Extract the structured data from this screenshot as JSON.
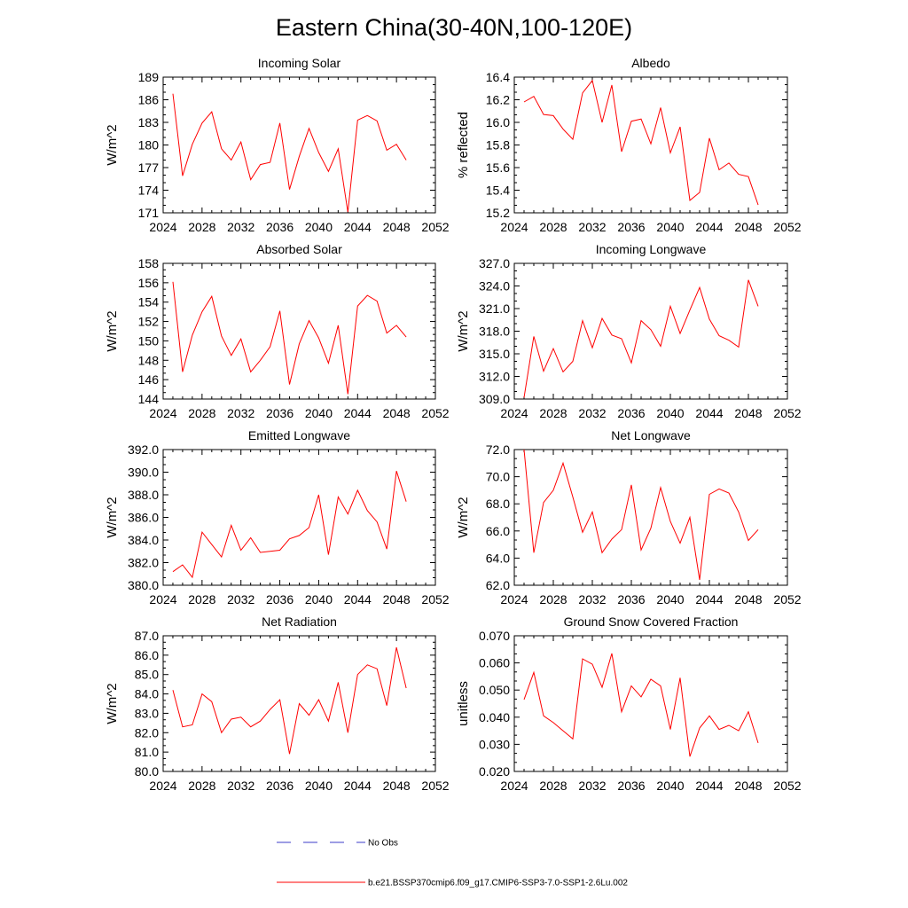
{
  "title": "Eastern China(30-40N,100-120E)",
  "legend": {
    "entries": [
      {
        "label": "No Obs",
        "color": "#3b3bc8",
        "style": "dashed"
      },
      {
        "label": "b.e21.BSSP370cmip6.f09_g17.CMIP6-SSP3-7.0-SSP1-2.6Lu.002",
        "color": "#ff0000",
        "style": "solid"
      }
    ]
  },
  "chart_data": [
    {
      "type": "line",
      "title": "Incoming Solar",
      "xlabel": "",
      "ylabel": "W/m^2",
      "xlim": [
        2024,
        2052
      ],
      "ylim": [
        171,
        189
      ],
      "xticks": [
        2024,
        2028,
        2032,
        2036,
        2040,
        2044,
        2048,
        2052
      ],
      "xtick_labels": [
        "2024",
        "2028",
        "2032",
        "2036",
        "2040",
        "2044",
        "2048",
        "2052"
      ],
      "yticks": [
        171,
        174,
        177,
        180,
        183,
        186,
        189
      ],
      "ytick_labels": [
        "171",
        "174",
        "177",
        "180",
        "183",
        "186",
        "189"
      ],
      "grid": false,
      "x": [
        2025,
        2026,
        2027,
        2028,
        2029,
        2030,
        2031,
        2032,
        2033,
        2034,
        2035,
        2036,
        2037,
        2038,
        2039,
        2040,
        2041,
        2042,
        2043,
        2044,
        2045,
        2046,
        2047,
        2048,
        2049
      ],
      "series": [
        {
          "name": "b.e21.BSSP370cmip6.f09_g17.CMIP6-SSP3-7.0-SSP1-2.6Lu.002",
          "color": "#ff0000",
          "values": [
            186.8,
            175.9,
            180.1,
            182.9,
            184.4,
            179.5,
            178.0,
            180.4,
            175.4,
            177.4,
            177.7,
            182.9,
            174.1,
            178.5,
            182.2,
            179.0,
            176.5,
            179.5,
            171.1,
            183.3,
            183.9,
            183.2,
            179.3,
            180.1,
            178.0
          ]
        }
      ]
    },
    {
      "type": "line",
      "title": "Albedo",
      "xlabel": "",
      "ylabel": "% reflected",
      "xlim": [
        2024,
        2052
      ],
      "ylim": [
        15.2,
        16.4
      ],
      "xticks": [
        2024,
        2028,
        2032,
        2036,
        2040,
        2044,
        2048,
        2052
      ],
      "xtick_labels": [
        "2024",
        "2028",
        "2032",
        "2036",
        "2040",
        "2044",
        "2048",
        "2052"
      ],
      "yticks": [
        15.2,
        15.4,
        15.6,
        15.8,
        16.0,
        16.2,
        16.4
      ],
      "ytick_labels": [
        "15.2",
        "15.4",
        "15.6",
        "15.8",
        "16.0",
        "16.2",
        "16.4"
      ],
      "grid": false,
      "x": [
        2025,
        2026,
        2027,
        2028,
        2029,
        2030,
        2031,
        2032,
        2033,
        2034,
        2035,
        2036,
        2037,
        2038,
        2039,
        2040,
        2041,
        2042,
        2043,
        2044,
        2045,
        2046,
        2047,
        2048,
        2049
      ],
      "series": [
        {
          "name": "b.e21.BSSP370cmip6.f09_g17.CMIP6-SSP3-7.0-SSP1-2.6Lu.002",
          "color": "#ff0000",
          "values": [
            16.18,
            16.23,
            16.07,
            16.06,
            15.94,
            15.85,
            16.26,
            16.37,
            16.0,
            16.33,
            15.74,
            16.01,
            16.03,
            15.81,
            16.13,
            15.73,
            15.96,
            15.31,
            15.38,
            15.86,
            15.58,
            15.64,
            15.54,
            15.52,
            15.27
          ]
        }
      ]
    },
    {
      "type": "line",
      "title": "Absorbed Solar",
      "xlabel": "",
      "ylabel": "W/m^2",
      "xlim": [
        2024,
        2052
      ],
      "ylim": [
        144,
        158
      ],
      "xticks": [
        2024,
        2028,
        2032,
        2036,
        2040,
        2044,
        2048,
        2052
      ],
      "xtick_labels": [
        "2024",
        "2028",
        "2032",
        "2036",
        "2040",
        "2044",
        "2048",
        "2052"
      ],
      "yticks": [
        144,
        146,
        148,
        150,
        152,
        154,
        156,
        158
      ],
      "ytick_labels": [
        "144",
        "146",
        "148",
        "150",
        "152",
        "154",
        "156",
        "158"
      ],
      "grid": false,
      "x": [
        2025,
        2026,
        2027,
        2028,
        2029,
        2030,
        2031,
        2032,
        2033,
        2034,
        2035,
        2036,
        2037,
        2038,
        2039,
        2040,
        2041,
        2042,
        2043,
        2044,
        2045,
        2046,
        2047,
        2048,
        2049
      ],
      "series": [
        {
          "name": "b.e21.BSSP370cmip6.f09_g17.CMIP6-SSP3-7.0-SSP1-2.6Lu.002",
          "color": "#ff0000",
          "values": [
            156.1,
            146.8,
            150.6,
            153.0,
            154.6,
            150.5,
            148.5,
            150.2,
            146.8,
            148.0,
            149.4,
            153.1,
            145.5,
            149.7,
            152.1,
            150.3,
            147.7,
            151.6,
            144.5,
            153.6,
            154.7,
            154.1,
            150.8,
            151.6,
            150.4
          ]
        }
      ]
    },
    {
      "type": "line",
      "title": "Incoming Longwave",
      "xlabel": "",
      "ylabel": "W/m^2",
      "xlim": [
        2024,
        2052
      ],
      "ylim": [
        309.0,
        327.0
      ],
      "xticks": [
        2024,
        2028,
        2032,
        2036,
        2040,
        2044,
        2048,
        2052
      ],
      "xtick_labels": [
        "2024",
        "2028",
        "2032",
        "2036",
        "2040",
        "2044",
        "2048",
        "2052"
      ],
      "yticks": [
        309.0,
        312.0,
        315.0,
        318.0,
        321.0,
        324.0,
        327.0
      ],
      "ytick_labels": [
        "309.0",
        "312.0",
        "315.0",
        "318.0",
        "321.0",
        "324.0",
        "327.0"
      ],
      "grid": false,
      "x": [
        2025,
        2026,
        2027,
        2028,
        2029,
        2030,
        2031,
        2032,
        2033,
        2034,
        2035,
        2036,
        2037,
        2038,
        2039,
        2040,
        2041,
        2042,
        2043,
        2044,
        2045,
        2046,
        2047,
        2048,
        2049
      ],
      "series": [
        {
          "name": "b.e21.BSSP370cmip6.f09_g17.CMIP6-SSP3-7.0-SSP1-2.6Lu.002",
          "color": "#ff0000",
          "values": [
            309.2,
            317.3,
            312.7,
            315.7,
            312.6,
            314.0,
            319.4,
            315.8,
            319.7,
            317.5,
            317.0,
            313.8,
            319.4,
            318.2,
            316.0,
            321.3,
            317.7,
            320.8,
            323.8,
            319.6,
            317.4,
            316.8,
            315.9,
            324.8,
            321.3
          ]
        }
      ]
    },
    {
      "type": "line",
      "title": "Emitted Longwave",
      "xlabel": "",
      "ylabel": "W/m^2",
      "xlim": [
        2024,
        2052
      ],
      "ylim": [
        380.0,
        392.0
      ],
      "xticks": [
        2024,
        2028,
        2032,
        2036,
        2040,
        2044,
        2048,
        2052
      ],
      "xtick_labels": [
        "2024",
        "2028",
        "2032",
        "2036",
        "2040",
        "2044",
        "2048",
        "2052"
      ],
      "yticks": [
        380.0,
        382.0,
        384.0,
        386.0,
        388.0,
        390.0,
        392.0
      ],
      "ytick_labels": [
        "380.0",
        "382.0",
        "384.0",
        "386.0",
        "388.0",
        "390.0",
        "392.0"
      ],
      "grid": false,
      "x": [
        2025,
        2026,
        2027,
        2028,
        2029,
        2030,
        2031,
        2032,
        2033,
        2034,
        2035,
        2036,
        2037,
        2038,
        2039,
        2040,
        2041,
        2042,
        2043,
        2044,
        2045,
        2046,
        2047,
        2048,
        2049
      ],
      "series": [
        {
          "name": "b.e21.BSSP370cmip6.f09_g17.CMIP6-SSP3-7.0-SSP1-2.6Lu.002",
          "color": "#ff0000",
          "values": [
            381.2,
            381.8,
            380.7,
            384.7,
            383.6,
            382.5,
            385.3,
            383.1,
            384.2,
            382.9,
            383.0,
            383.1,
            384.1,
            384.4,
            385.1,
            388.0,
            382.7,
            387.8,
            386.3,
            388.4,
            386.6,
            385.6,
            383.2,
            390.1,
            387.4
          ]
        }
      ]
    },
    {
      "type": "line",
      "title": "Net Longwave",
      "xlabel": "",
      "ylabel": "W/m^2",
      "xlim": [
        2024,
        2052
      ],
      "ylim": [
        62.0,
        72.0
      ],
      "xticks": [
        2024,
        2028,
        2032,
        2036,
        2040,
        2044,
        2048,
        2052
      ],
      "xtick_labels": [
        "2024",
        "2028",
        "2032",
        "2036",
        "2040",
        "2044",
        "2048",
        "2052"
      ],
      "yticks": [
        62.0,
        64.0,
        66.0,
        68.0,
        70.0,
        72.0
      ],
      "ytick_labels": [
        "62.0",
        "64.0",
        "66.0",
        "68.0",
        "70.0",
        "72.0"
      ],
      "grid": false,
      "x": [
        2025,
        2026,
        2027,
        2028,
        2029,
        2030,
        2031,
        2032,
        2033,
        2034,
        2035,
        2036,
        2037,
        2038,
        2039,
        2040,
        2041,
        2042,
        2043,
        2044,
        2045,
        2046,
        2047,
        2048,
        2049
      ],
      "series": [
        {
          "name": "b.e21.BSSP370cmip6.f09_g17.CMIP6-SSP3-7.0-SSP1-2.6Lu.002",
          "color": "#ff0000",
          "values": [
            72.0,
            64.4,
            68.1,
            69.0,
            71.0,
            68.5,
            65.9,
            67.4,
            64.4,
            65.4,
            66.1,
            69.4,
            64.6,
            66.2,
            69.2,
            66.7,
            65.1,
            67.0,
            62.4,
            68.7,
            69.1,
            68.8,
            67.4,
            65.3,
            66.1
          ]
        }
      ]
    },
    {
      "type": "line",
      "title": "Net Radiation",
      "xlabel": "",
      "ylabel": "W/m^2",
      "xlim": [
        2024,
        2052
      ],
      "ylim": [
        80.0,
        87.0
      ],
      "xticks": [
        2024,
        2028,
        2032,
        2036,
        2040,
        2044,
        2048,
        2052
      ],
      "xtick_labels": [
        "2024",
        "2028",
        "2032",
        "2036",
        "2040",
        "2044",
        "2048",
        "2052"
      ],
      "yticks": [
        80.0,
        81.0,
        82.0,
        83.0,
        84.0,
        85.0,
        86.0,
        87.0
      ],
      "ytick_labels": [
        "80.0",
        "81.0",
        "82.0",
        "83.0",
        "84.0",
        "85.0",
        "86.0",
        "87.0"
      ],
      "grid": false,
      "x": [
        2025,
        2026,
        2027,
        2028,
        2029,
        2030,
        2031,
        2032,
        2033,
        2034,
        2035,
        2036,
        2037,
        2038,
        2039,
        2040,
        2041,
        2042,
        2043,
        2044,
        2045,
        2046,
        2047,
        2048,
        2049
      ],
      "series": [
        {
          "name": "b.e21.BSSP370cmip6.f09_g17.CMIP6-SSP3-7.0-SSP1-2.6Lu.002",
          "color": "#ff0000",
          "values": [
            84.2,
            82.3,
            82.4,
            84.0,
            83.6,
            82.0,
            82.7,
            82.8,
            82.3,
            82.6,
            83.2,
            83.7,
            80.9,
            83.5,
            82.9,
            83.7,
            82.6,
            84.6,
            82.0,
            85.0,
            85.5,
            85.3,
            83.4,
            86.4,
            84.3
          ]
        }
      ]
    },
    {
      "type": "line",
      "title": "Ground Snow Covered Fraction",
      "xlabel": "",
      "ylabel": "unitless",
      "xlim": [
        2024,
        2052
      ],
      "ylim": [
        0.02,
        0.07
      ],
      "xticks": [
        2024,
        2028,
        2032,
        2036,
        2040,
        2044,
        2048,
        2052
      ],
      "xtick_labels": [
        "2024",
        "2028",
        "2032",
        "2036",
        "2040",
        "2044",
        "2048",
        "2052"
      ],
      "yticks": [
        0.02,
        0.03,
        0.04,
        0.05,
        0.06,
        0.07
      ],
      "ytick_labels": [
        "0.020",
        "0.030",
        "0.040",
        "0.050",
        "0.060",
        "0.070"
      ],
      "grid": false,
      "x": [
        2025,
        2026,
        2027,
        2028,
        2029,
        2030,
        2031,
        2032,
        2033,
        2034,
        2035,
        2036,
        2037,
        2038,
        2039,
        2040,
        2041,
        2042,
        2043,
        2044,
        2045,
        2046,
        2047,
        2048,
        2049
      ],
      "series": [
        {
          "name": "b.e21.BSSP370cmip6.f09_g17.CMIP6-SSP3-7.0-SSP1-2.6Lu.002",
          "color": "#ff0000",
          "values": [
            0.0465,
            0.0565,
            0.0405,
            0.038,
            0.035,
            0.032,
            0.0615,
            0.0595,
            0.051,
            0.0635,
            0.042,
            0.0515,
            0.0475,
            0.054,
            0.0515,
            0.0355,
            0.0545,
            0.0255,
            0.036,
            0.0405,
            0.0355,
            0.037,
            0.035,
            0.042,
            0.0305
          ]
        }
      ]
    }
  ]
}
